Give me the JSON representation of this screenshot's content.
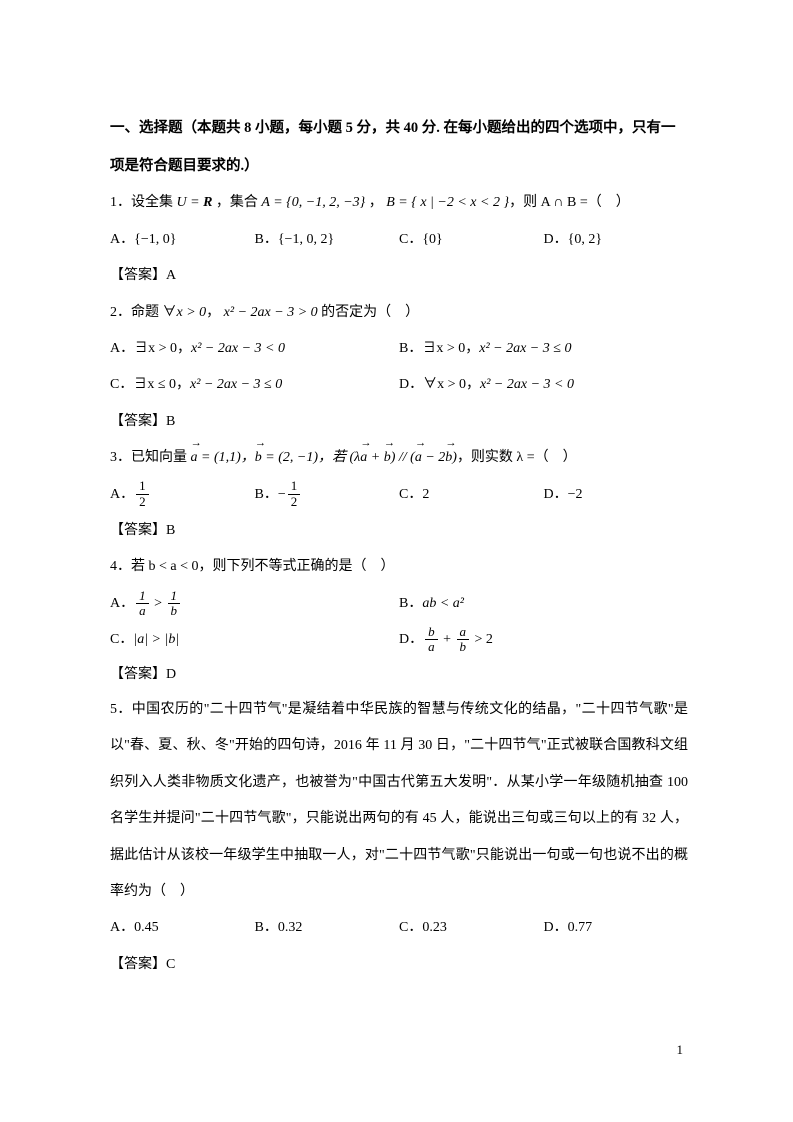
{
  "page_number": "1",
  "heading": "一、选择题（本题共 8 小题，每小题 5 分，共 40 分. 在每小题给出的四个选项中，只有一项是符合题目要求的.）",
  "q1": {
    "stem_pre": "1．设全集 ",
    "stem_u": "U = ",
    "stem_r": "R",
    "stem_mid1": " ，集合 ",
    "stem_a": "A = {0, −1, 2, −3}",
    "stem_mid2": " ， ",
    "stem_b": "B = { x | −2 < x < 2 }",
    "stem_end": "，则 A ∩ B =（　）",
    "a": "A．{−1, 0}",
    "b": "B．{−1, 0, 2}",
    "c": "C．{0}",
    "d": "D．{0, 2}",
    "ans": "【答案】A"
  },
  "q2": {
    "stem_pre": "2．命题 ∀",
    "stem_x": "x > 0",
    "stem_mid": "， ",
    "stem_expr": "x² − 2ax − 3 > 0",
    "stem_end": " 的否定为（　）",
    "a_pre": "A．∃x > 0，",
    "a_expr": "x² − 2ax − 3 < 0",
    "b_pre": "B．∃x > 0，",
    "b_expr": "x² − 2ax − 3 ≤ 0",
    "c_pre": "C．∃x ≤ 0，",
    "c_expr": "x² − 2ax − 3 ≤ 0",
    "d_pre": "D．∀x > 0，",
    "d_expr": "x² − 2ax − 3 < 0",
    "ans": "【答案】B"
  },
  "q3": {
    "stem_pre": "3．已知向量 ",
    "a_vec": "a",
    "a_val": " = (1,1)，",
    "b_vec": "b",
    "b_val": " = (2, −1)，若 ",
    "paren1_l": "(λ",
    "paren1_a": "a",
    "paren1_plus": " + ",
    "paren1_b": "b",
    "paren1_r": ")",
    "parallel": " // ",
    "paren2_l": "(",
    "paren2_a": "a",
    "paren2_minus": " − 2",
    "paren2_b": "b",
    "paren2_r": ")",
    "stem_end": "，则实数 λ =（　）",
    "a_label": "A．",
    "a_num": "1",
    "a_den": "2",
    "b_label": "B．−",
    "b_num": "1",
    "b_den": "2",
    "c": "C．2",
    "d": "D．−2",
    "ans": "【答案】B"
  },
  "q4": {
    "stem": "4．若 b < a < 0，则下列不等式正确的是（　）",
    "a_label": "A．",
    "a_n1": "1",
    "a_d1": "a",
    "a_gt": " > ",
    "a_n2": "1",
    "a_d2": "b",
    "b_label": "B．",
    "b_expr": "ab < a²",
    "c_label": "C．",
    "c_expr": "|a| > |b|",
    "d_label": "D．",
    "d_n1": "b",
    "d_d1": "a",
    "d_plus": " + ",
    "d_n2": "a",
    "d_d2": "b",
    "d_gt": " > 2",
    "ans": "【答案】D"
  },
  "q5": {
    "stem": "5．中国农历的\"二十四节气\"是凝结着中华民族的智慧与传统文化的结晶，\"二十四节气歌\"是以\"春、夏、秋、冬\"开始的四句诗，2016 年 11 月 30 日，\"二十四节气\"正式被联合国教科文组织列入人类非物质文化遗产，也被誉为\"中国古代第五大发明\"．从某小学一年级随机抽查 100 名学生并提问\"二十四节气歌\"，只能说出两句的有 45 人，能说出三句或三句以上的有 32 人，据此估计从该校一年级学生中抽取一人，对\"二十四节气歌\"只能说出一句或一句也说不出的概率约为（　）",
    "a": "A．0.45",
    "b": "B．0.32",
    "c": "C．0.23",
    "d": "D．0.77",
    "ans": "【答案】C"
  }
}
